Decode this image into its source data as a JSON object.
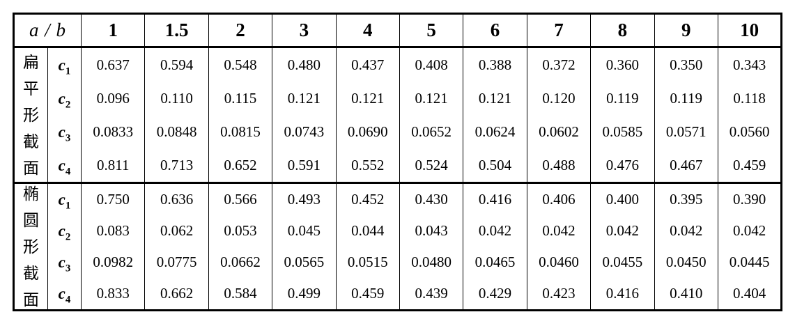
{
  "colors": {
    "background": "#ffffff",
    "text": "#000000",
    "border": "#000000"
  },
  "table": {
    "corner_label": "a / b",
    "columns": [
      "1",
      "1.5",
      "2",
      "3",
      "4",
      "5",
      "6",
      "7",
      "8",
      "9",
      "10"
    ],
    "sections": [
      {
        "name": "扁平形截面",
        "chars": [
          "扁",
          "平",
          "形",
          "截",
          "面"
        ],
        "rows": [
          {
            "label": "c",
            "sub": "1",
            "values": [
              "0.637",
              "0.594",
              "0.548",
              "0.480",
              "0.437",
              "0.408",
              "0.388",
              "0.372",
              "0.360",
              "0.350",
              "0.343"
            ]
          },
          {
            "label": "c",
            "sub": "2",
            "values": [
              "0.096",
              "0.110",
              "0.115",
              "0.121",
              "0.121",
              "0.121",
              "0.121",
              "0.120",
              "0.119",
              "0.119",
              "0.118"
            ]
          },
          {
            "label": "c",
            "sub": "3",
            "values": [
              "0.0833",
              "0.0848",
              "0.0815",
              "0.0743",
              "0.0690",
              "0.0652",
              "0.0624",
              "0.0602",
              "0.0585",
              "0.0571",
              "0.0560"
            ]
          },
          {
            "label": "c",
            "sub": "4",
            "values": [
              "0.811",
              "0.713",
              "0.652",
              "0.591",
              "0.552",
              "0.524",
              "0.504",
              "0.488",
              "0.476",
              "0.467",
              "0.459"
            ]
          }
        ]
      },
      {
        "name": "椭圆形截面",
        "chars": [
          "椭",
          "圆",
          "形",
          "截",
          "面"
        ],
        "rows": [
          {
            "label": "c",
            "sub": "1",
            "values": [
              "0.750",
              "0.636",
              "0.566",
              "0.493",
              "0.452",
              "0.430",
              "0.416",
              "0.406",
              "0.400",
              "0.395",
              "0.390"
            ]
          },
          {
            "label": "c",
            "sub": "2",
            "values": [
              "0.083",
              "0.062",
              "0.053",
              "0.045",
              "0.044",
              "0.043",
              "0.042",
              "0.042",
              "0.042",
              "0.042",
              "0.042"
            ]
          },
          {
            "label": "c",
            "sub": "3",
            "values": [
              "0.0982",
              "0.0775",
              "0.0662",
              "0.0565",
              "0.0515",
              "0.0480",
              "0.0465",
              "0.0460",
              "0.0455",
              "0.0450",
              "0.0445"
            ]
          },
          {
            "label": "c",
            "sub": "4",
            "values": [
              "0.833",
              "0.662",
              "0.584",
              "0.499",
              "0.459",
              "0.439",
              "0.429",
              "0.423",
              "0.416",
              "0.410",
              "0.404"
            ]
          }
        ]
      }
    ]
  }
}
